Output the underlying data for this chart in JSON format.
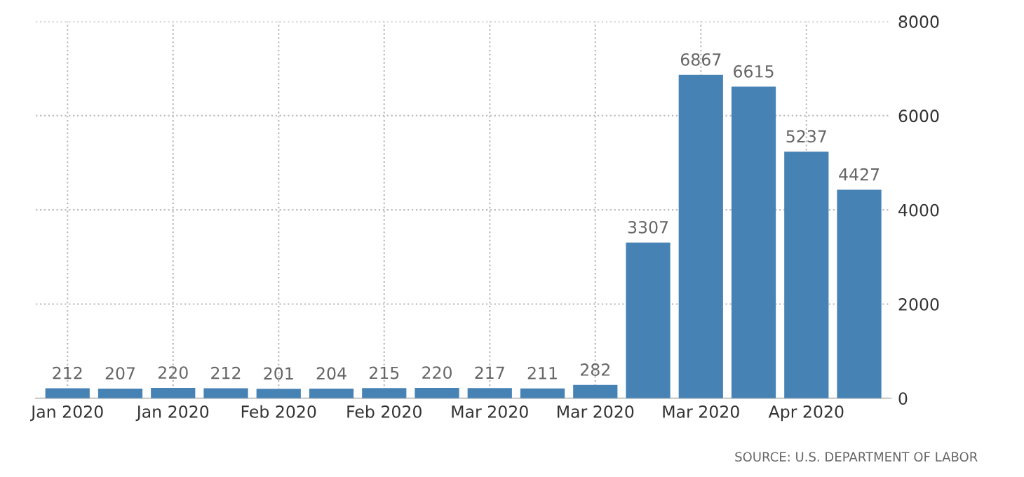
{
  "chart_data": {
    "type": "bar",
    "categories": [
      "Jan 2020",
      null,
      "Jan 2020",
      null,
      "Feb 2020",
      null,
      "Feb 2020",
      null,
      "Mar 2020",
      null,
      "Mar 2020",
      null,
      "Mar 2020",
      null,
      "Apr 2020",
      null
    ],
    "values": [
      212,
      207,
      220,
      212,
      201,
      204,
      215,
      220,
      217,
      211,
      282,
      3307,
      6867,
      6615,
      5237,
      4427
    ],
    "color": "#4682b4",
    "data_labels": true,
    "ylim": [
      0,
      8000
    ],
    "yticks": [
      0,
      2000,
      4000,
      6000,
      8000
    ],
    "grid": true,
    "annotations": [
      "SOURCE: U.S. DEPARTMENT OF LABOR"
    ]
  }
}
